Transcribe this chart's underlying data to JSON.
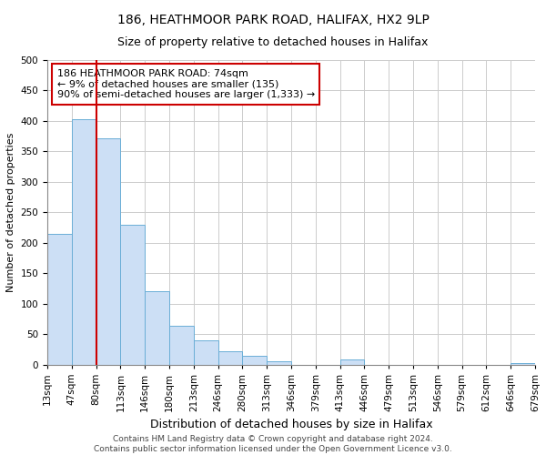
{
  "title": "186, HEATHMOOR PARK ROAD, HALIFAX, HX2 9LP",
  "subtitle": "Size of property relative to detached houses in Halifax",
  "xlabel": "Distribution of detached houses by size in Halifax",
  "ylabel": "Number of detached properties",
  "bar_color": "#ccdff5",
  "bar_edge_color": "#6aaed6",
  "num_bins": 20,
  "bar_heights": [
    215,
    403,
    372,
    230,
    120,
    63,
    40,
    22,
    15,
    5,
    0,
    0,
    8,
    0,
    0,
    0,
    0,
    0,
    0,
    3
  ],
  "tick_labels": [
    "13sqm",
    "47sqm",
    "80sqm",
    "113sqm",
    "146sqm",
    "180sqm",
    "213sqm",
    "246sqm",
    "280sqm",
    "313sqm",
    "346sqm",
    "379sqm",
    "413sqm",
    "446sqm",
    "479sqm",
    "513sqm",
    "546sqm",
    "579sqm",
    "612sqm",
    "646sqm",
    "679sqm"
  ],
  "ylim": [
    0,
    500
  ],
  "yticks": [
    0,
    50,
    100,
    150,
    200,
    250,
    300,
    350,
    400,
    450,
    500
  ],
  "property_line_x": 2,
  "property_line_color": "#cc0000",
  "annotation_line1": "186 HEATHMOOR PARK ROAD: 74sqm",
  "annotation_line2": "← 9% of detached houses are smaller (135)",
  "annotation_line3": "90% of semi-detached houses are larger (1,333) →",
  "annotation_box_color": "#cc0000",
  "background_color": "#ffffff",
  "grid_color": "#cccccc",
  "footer_text": "Contains HM Land Registry data © Crown copyright and database right 2024.\nContains public sector information licensed under the Open Government Licence v3.0.",
  "title_fontsize": 10,
  "subtitle_fontsize": 9,
  "xlabel_fontsize": 9,
  "ylabel_fontsize": 8,
  "tick_fontsize": 7.5,
  "annotation_fontsize": 8,
  "footer_fontsize": 6.5
}
